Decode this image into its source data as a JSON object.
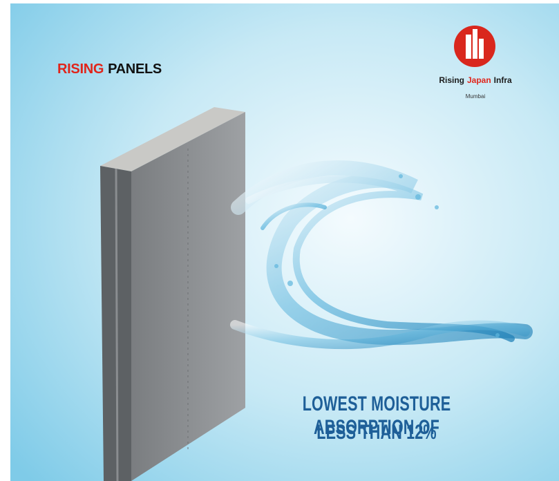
{
  "brand": {
    "first": "RISING",
    "second": "PANELS"
  },
  "logo": {
    "name": [
      "Rising",
      "Japan",
      "Infra"
    ],
    "city": "Mumbai"
  },
  "headline": [
    "LOWEST MOISTURE ABSORPTION OF",
    "LESS THAN 12%"
  ]
}
